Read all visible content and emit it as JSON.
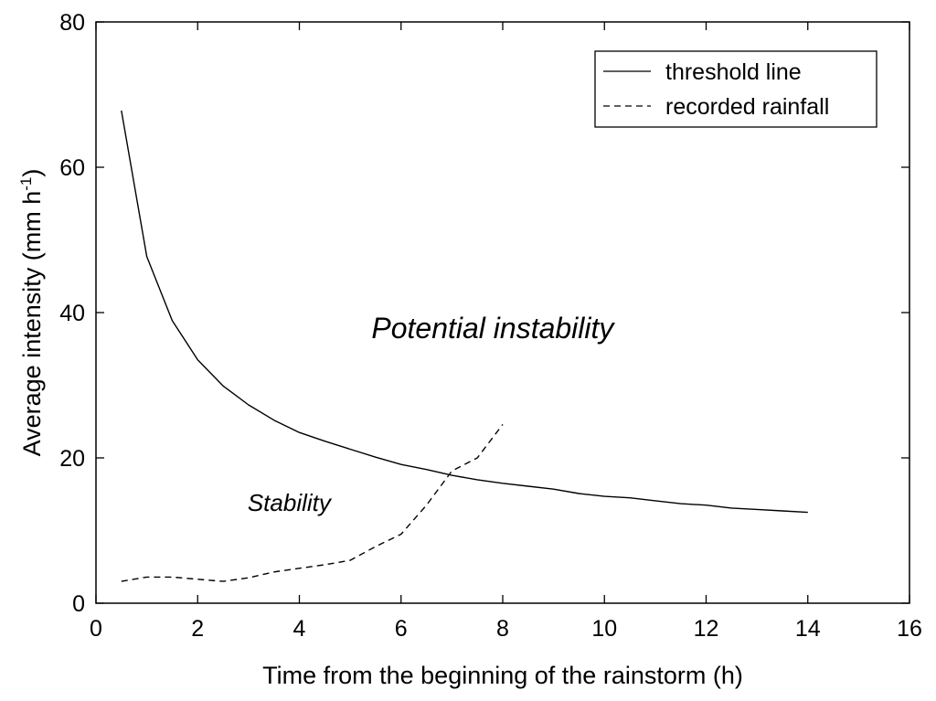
{
  "chart_data": {
    "type": "line",
    "title": "",
    "xlabel": "Time from the beginning of the rainstorm (h)",
    "ylabel": "Average intensity (mm h",
    "ylabel_superscript": "-1",
    "ylabel_suffix": ")",
    "xlim": [
      0,
      16
    ],
    "ylim": [
      0,
      80
    ],
    "xticks": [
      0,
      2,
      4,
      6,
      8,
      10,
      12,
      14,
      16
    ],
    "yticks": [
      0,
      20,
      40,
      60,
      80
    ],
    "grid": false,
    "legend_position": "top-right",
    "series": [
      {
        "name": "threshold line",
        "style": "solid",
        "x": [
          0.5,
          1,
          1.5,
          2,
          2.5,
          3,
          3.5,
          4,
          4.5,
          5,
          5.5,
          6,
          6.5,
          7,
          7.5,
          8,
          8.5,
          9,
          9.5,
          10,
          10.5,
          11,
          11.5,
          12,
          12.5,
          13,
          13.5,
          14
        ],
        "values": [
          67.8,
          47.7,
          38.9,
          33.5,
          29.9,
          27.3,
          25.2,
          23.5,
          22.3,
          21.2,
          20.1,
          19.1,
          18.4,
          17.6,
          17.0,
          16.5,
          16.1,
          15.7,
          15.1,
          14.7,
          14.5,
          14.1,
          13.7,
          13.5,
          13.1,
          12.9,
          12.7,
          12.5
        ]
      },
      {
        "name": "recorded rainfall",
        "style": "dashed",
        "x": [
          0.5,
          1,
          1.5,
          2,
          2.5,
          3,
          3.5,
          4,
          4.5,
          5,
          5.5,
          6,
          6.5,
          7,
          7.5,
          8
        ],
        "values": [
          3.0,
          3.6,
          3.6,
          3.3,
          3.0,
          3.5,
          4.3,
          4.8,
          5.3,
          5.9,
          7.8,
          9.5,
          13.5,
          18.2,
          20.0,
          24.6
        ]
      }
    ],
    "annotations": [
      {
        "text": "Potential instability",
        "x": 7.8,
        "y": 36.5,
        "size": "large"
      },
      {
        "text": "Stability",
        "x": 3.8,
        "y": 12.7,
        "size": "small"
      }
    ]
  }
}
